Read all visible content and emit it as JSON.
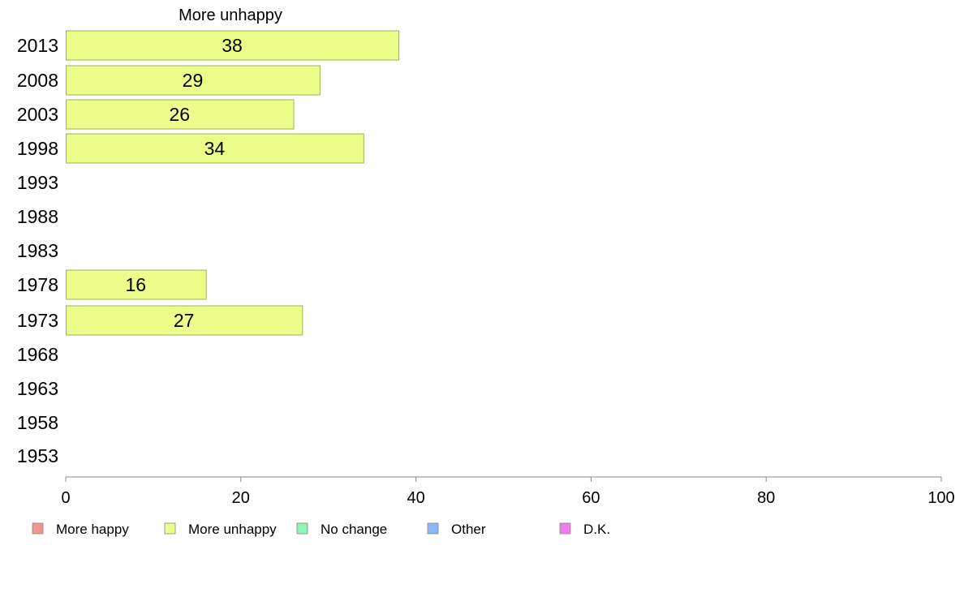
{
  "chart_data": {
    "type": "bar",
    "orientation": "horizontal",
    "title": "More unhappy",
    "categories": [
      "2013",
      "2008",
      "2003",
      "1998",
      "1993",
      "1988",
      "1983",
      "1978",
      "1973",
      "1968",
      "1963",
      "1958",
      "1953"
    ],
    "series": [
      {
        "name": "More unhappy",
        "values": [
          38,
          29,
          26,
          34,
          null,
          null,
          null,
          16,
          27,
          null,
          null,
          null,
          null
        ]
      }
    ],
    "xlim": [
      0,
      100
    ],
    "xticks": [
      0,
      20,
      40,
      60,
      80,
      100
    ],
    "grid": false,
    "legend_position": "bottom",
    "legend": [
      {
        "label": "More happy",
        "color": "#f4948e"
      },
      {
        "label": "More unhappy",
        "color": "#ecfd8a"
      },
      {
        "label": "No change",
        "color": "#8cf7b6"
      },
      {
        "label": "Other",
        "color": "#8ab8f6"
      },
      {
        "label": "D.K.",
        "color": "#ee7ef0"
      }
    ],
    "bar_color": "#ecfd8a",
    "bar_stroke": "#a3b05a"
  }
}
